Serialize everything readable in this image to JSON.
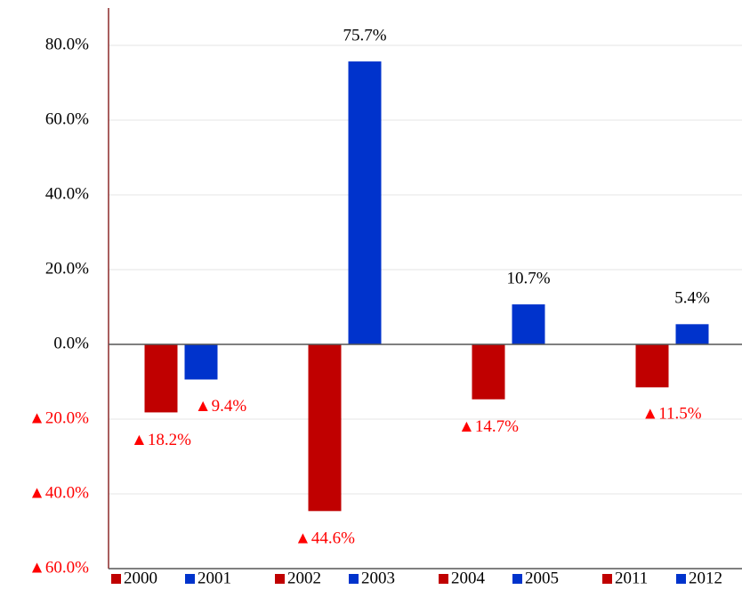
{
  "chart_data": {
    "type": "bar",
    "groups": [
      {
        "series": [
          {
            "name": "2000",
            "color": "#c00000",
            "value": -18.2,
            "value_label": "▲18.2%"
          },
          {
            "name": "2001",
            "color": "#0033cc",
            "value": -9.4,
            "value_label": "▲9.4%"
          }
        ]
      },
      {
        "series": [
          {
            "name": "2002",
            "color": "#c00000",
            "value": -44.6,
            "value_label": "▲44.6%"
          },
          {
            "name": "2003",
            "color": "#0033cc",
            "value": 75.7,
            "value_label": "75.7%"
          }
        ]
      },
      {
        "series": [
          {
            "name": "2004",
            "color": "#c00000",
            "value": -14.7,
            "value_label": "▲14.7%"
          },
          {
            "name": "2005",
            "color": "#0033cc",
            "value": 10.7,
            "value_label": "10.7%"
          }
        ]
      },
      {
        "series": [
          {
            "name": "2011",
            "color": "#c00000",
            "value": -11.5,
            "value_label": "▲11.5%"
          },
          {
            "name": "2012",
            "color": "#0033cc",
            "value": 5.4,
            "value_label": "5.4%"
          }
        ]
      }
    ],
    "ylim": [
      -60,
      90
    ],
    "yticks": [
      {
        "value": 80,
        "label": "80.0%"
      },
      {
        "value": 60,
        "label": "60.0%"
      },
      {
        "value": 40,
        "label": "40.0%"
      },
      {
        "value": 20,
        "label": "20.0%"
      },
      {
        "value": 0,
        "label": "0.0%"
      },
      {
        "value": -20,
        "label": "▲20.0%"
      },
      {
        "value": -40,
        "label": "▲40.0%"
      },
      {
        "value": -60,
        "label": "▲60.0%"
      }
    ],
    "grid": true
  }
}
